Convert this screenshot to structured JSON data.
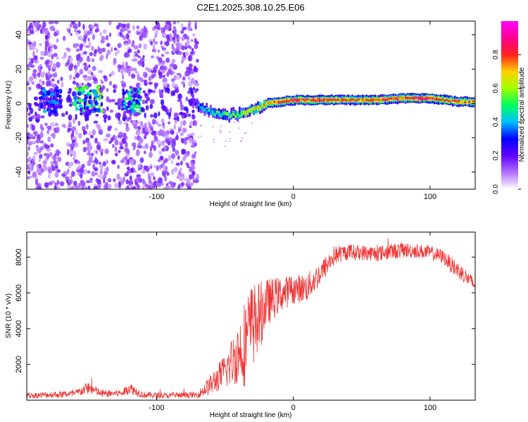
{
  "figure_title": "C2E1.2025.308.10.25.E06",
  "chart_data": [
    {
      "type": "heatmap",
      "title": "C2E1.2025.308.10.25.E06",
      "xlabel": "Height of straight line (km)",
      "ylabel": "Frequency (Hz)",
      "xlim": [
        -195,
        133
      ],
      "ylim": [
        -50,
        48
      ],
      "xticks": [
        -100,
        0,
        100
      ],
      "xtick_labels": [
        "-100",
        "0",
        "100"
      ],
      "yticks": [
        -40,
        -20,
        0,
        20,
        40
      ],
      "ytick_labels": [
        "-40",
        "-20",
        "0",
        "20",
        "40"
      ],
      "colorbar": {
        "label": "Normalized spectral amplitude",
        "range": [
          0,
          1
        ],
        "ticks": [
          0.0,
          0.2,
          0.4,
          0.6,
          0.8
        ],
        "tick_labels": [
          "0.0",
          "0.2",
          "0.4",
          "0.6",
          "0.8"
        ],
        "colormap": [
          "#ffffff",
          "#b070ff",
          "#6000ff",
          "#0000ff",
          "#00c0ff",
          "#00ff60",
          "#a0ff00",
          "#ffd000",
          "#ff2020",
          "#ff0090",
          "#ff00ff"
        ]
      },
      "noise_region_x": [
        -195,
        -70
      ],
      "ridge": {
        "x": [
          -70,
          -60,
          -50,
          -40,
          -30,
          -20,
          -10,
          0,
          20,
          40,
          60,
          80,
          100,
          120,
          133
        ],
        "freq": [
          -2,
          -5,
          -7,
          -6,
          -4,
          0,
          1,
          2,
          2,
          2,
          2,
          3,
          3,
          1,
          1
        ],
        "amplitude": [
          0.45,
          0.5,
          0.55,
          0.6,
          0.7,
          0.75,
          0.85,
          0.88,
          0.85,
          0.8,
          0.82,
          0.85,
          0.87,
          0.8,
          0.75
        ]
      },
      "low_freq_clusters": [
        {
          "x": [
            -185,
            -170
          ],
          "freq": [
            -5,
            8
          ],
          "amplitude": 0.4
        },
        {
          "x": [
            -160,
            -140
          ],
          "freq": [
            -5,
            10
          ],
          "amplitude": 0.55
        },
        {
          "x": [
            -125,
            -112
          ],
          "freq": [
            -5,
            8
          ],
          "amplitude": 0.5
        }
      ]
    },
    {
      "type": "line",
      "xlabel": "Height of straight line (km)",
      "ylabel": "SNR (10 * v/v)",
      "xlim": [
        -195,
        133
      ],
      "ylim": [
        0,
        9400
      ],
      "xticks": [
        -100,
        0,
        100
      ],
      "xtick_labels": [
        "-100",
        "0",
        "100"
      ],
      "yticks": [
        2000,
        4000,
        6000,
        8000
      ],
      "ytick_labels": [
        "2000",
        "4000",
        "6000",
        "8000"
      ],
      "color": "#ee3333",
      "series": [
        {
          "name": "SNR",
          "x": [
            -195,
            -180,
            -160,
            -150,
            -140,
            -125,
            -120,
            -110,
            -90,
            -70,
            -60,
            -50,
            -40,
            -35,
            -30,
            -25,
            -20,
            -10,
            0,
            10,
            20,
            25,
            30,
            40,
            50,
            60,
            70,
            80,
            90,
            100,
            110,
            115,
            120,
            125,
            133
          ],
          "value": [
            250,
            300,
            350,
            700,
            350,
            400,
            700,
            300,
            250,
            300,
            900,
            1600,
            2700,
            3300,
            4200,
            4600,
            5400,
            5900,
            6200,
            6300,
            7100,
            7600,
            8100,
            8300,
            8250,
            8200,
            8300,
            8400,
            8350,
            8250,
            8000,
            7600,
            7300,
            7000,
            6400
          ],
          "spread": [
            150,
            180,
            200,
            350,
            200,
            200,
            350,
            180,
            150,
            180,
            600,
            1000,
            1800,
            2600,
            2400,
            2000,
            1400,
            1000,
            800,
            800,
            700,
            600,
            550,
            450,
            450,
            450,
            450,
            450,
            400,
            400,
            400,
            450,
            500,
            450,
            400
          ]
        }
      ]
    }
  ]
}
